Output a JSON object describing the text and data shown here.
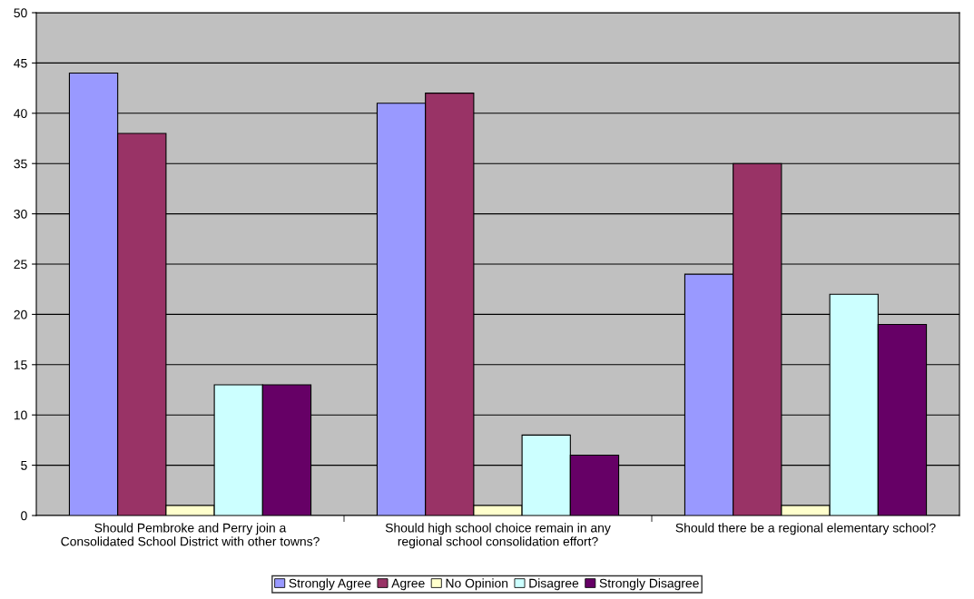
{
  "chart_data": {
    "type": "bar",
    "categories": [
      "Should Pembroke and Perry join a\nConsolidated School District with other towns?",
      "Should high school choice remain in any\nregional school consolidation effort?",
      "Should there be a regional elementary school?"
    ],
    "series": [
      {
        "name": "Strongly Agree",
        "color": "#9999ff",
        "values": [
          44,
          41,
          24
        ]
      },
      {
        "name": "Agree",
        "color": "#993366",
        "values": [
          38,
          42,
          35
        ]
      },
      {
        "name": "No Opinion",
        "color": "#ffffcc",
        "values": [
          1,
          1,
          1
        ]
      },
      {
        "name": "Disagree",
        "color": "#ccffff",
        "values": [
          13,
          8,
          22
        ]
      },
      {
        "name": "Strongly Disagree",
        "color": "#660066",
        "values": [
          13,
          6,
          19
        ]
      }
    ],
    "ylim": [
      0,
      50
    ],
    "yticks": [
      0,
      5,
      10,
      15,
      20,
      25,
      30,
      35,
      40,
      45,
      50
    ],
    "grid": "y",
    "legend": "bottom"
  }
}
